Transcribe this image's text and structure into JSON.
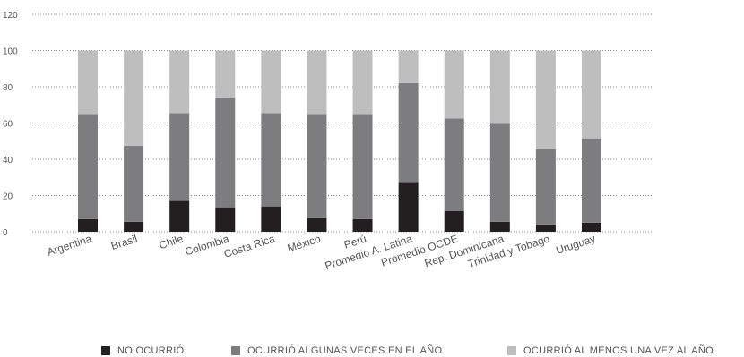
{
  "chart_data": {
    "type": "bar",
    "stacked": true,
    "title": "",
    "xlabel": "",
    "ylabel": "",
    "ylim": [
      0,
      120
    ],
    "yticks": [
      "0",
      "20",
      "40",
      "60",
      "80",
      "100",
      "120"
    ],
    "grid": true,
    "legend_position": "bottom",
    "categories": [
      "Argentina",
      "Brasil",
      "Chile",
      "Colombia",
      "Costa Rica",
      "México",
      "Perú",
      "Promedio A. Latina",
      "Promedio OCDE",
      "Rep. Dominicana",
      "Trinidad y Tobago",
      "Uruguay"
    ],
    "series": [
      {
        "name": "NO OCURRIÓ",
        "color": "#231f20",
        "values": [
          7,
          5.5,
          17,
          13.5,
          14,
          7.5,
          7,
          27.5,
          11.5,
          5.5,
          4,
          5
        ]
      },
      {
        "name": "OCURRIÓ ALGUNAS VECES EN EL AÑO",
        "color": "#7d7d7f",
        "values": [
          58,
          42,
          48.5,
          60.5,
          51.5,
          57.5,
          58,
          54.5,
          51,
          54,
          41.5,
          46.5
        ]
      },
      {
        "name": "OCURRIÓ AL MENOS UNA VEZ AL AÑO",
        "color": "#bebebf",
        "values": [
          35,
          52.5,
          34.5,
          26,
          34.5,
          35,
          35,
          18,
          37.5,
          40.5,
          54.5,
          48.5
        ]
      }
    ]
  }
}
